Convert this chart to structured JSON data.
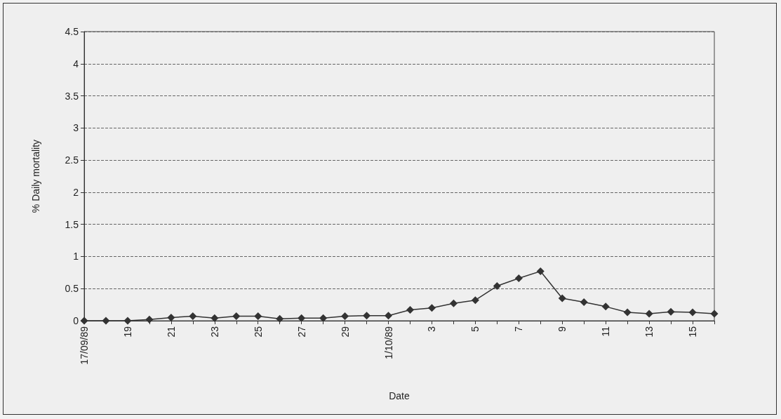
{
  "chart_data": {
    "type": "line",
    "xlabel": "Date",
    "ylabel": "% Daily mortality",
    "categories": [
      "17/09/89",
      null,
      "19",
      null,
      "21",
      null,
      "23",
      null,
      "25",
      null,
      "27",
      null,
      "29",
      null,
      "1/10/89",
      null,
      "3",
      null,
      "5",
      null,
      "7",
      null,
      "9",
      null,
      "11",
      null,
      "13",
      null,
      "15",
      null
    ],
    "series": [
      {
        "color": "#333333",
        "values": [
          0,
          0,
          0,
          0.02,
          0.05,
          0.07,
          0.04,
          0.07,
          0.07,
          0.03,
          0.04,
          0.04,
          0.07,
          0.08,
          0.08,
          0.17,
          0.2,
          0.27,
          0.32,
          0.54,
          0.66,
          0.77,
          0.35,
          0.29,
          0.22,
          0.13,
          0.11,
          0.14,
          0.13,
          0.11
        ]
      }
    ],
    "ylim": [
      0,
      4.5
    ],
    "yticks": [
      0,
      0.5,
      1,
      1.5,
      2,
      2.5,
      3,
      3.5,
      4,
      4.5
    ],
    "grid": "y",
    "marker": "diamond",
    "line_style": "solid"
  }
}
